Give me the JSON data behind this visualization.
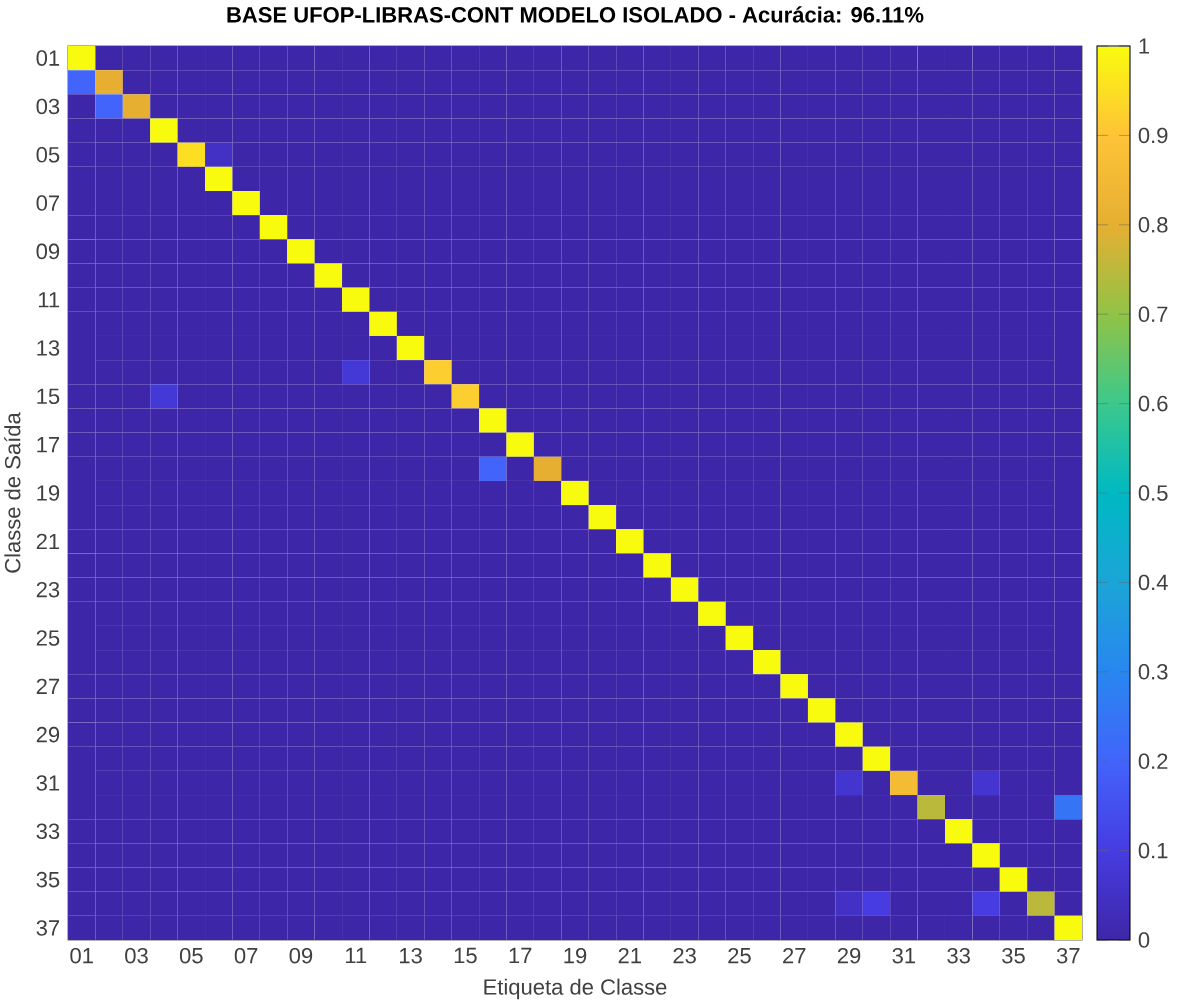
{
  "chart_data": {
    "type": "heatmap",
    "title": "BASE UFOP-LIBRAS-CONT MODELO ISOLADO - Acurácia: 96.11%",
    "xlabel": "Etiqueta de Classe",
    "ylabel": "Classe de Saída",
    "categories": [
      "01",
      null,
      "03",
      null,
      "05",
      null,
      "07",
      null,
      "09",
      null,
      "11",
      null,
      "13",
      null,
      "15",
      null,
      "17",
      null,
      "19",
      null,
      "21",
      null,
      "23",
      null,
      "25",
      null,
      "27",
      null,
      "29",
      null,
      "31",
      null,
      "33",
      null,
      "35",
      null,
      "37"
    ],
    "y_categories": [
      "01",
      null,
      "03",
      null,
      "05",
      null,
      "07",
      null,
      "09",
      null,
      "11",
      null,
      "13",
      null,
      "15",
      null,
      "17",
      null,
      "19",
      null,
      "21",
      null,
      "23",
      null,
      "25",
      null,
      "27",
      null,
      "29",
      null,
      "31",
      null,
      "33",
      null,
      "35",
      null,
      "37"
    ],
    "cells": [
      [
        1,
        0,
        0,
        0,
        0,
        0,
        0,
        0,
        0,
        0,
        0,
        0,
        0,
        0,
        0,
        0,
        0,
        0,
        0,
        0,
        0,
        0,
        0,
        0,
        0,
        0,
        0,
        0,
        0,
        0,
        0,
        0,
        0,
        0,
        0,
        0,
        0
      ],
      [
        0.2,
        0.8,
        0,
        0,
        0,
        0,
        0,
        0,
        0,
        0,
        0,
        0,
        0,
        0,
        0,
        0,
        0,
        0,
        0,
        0,
        0,
        0,
        0,
        0,
        0,
        0,
        0,
        0,
        0,
        0,
        0,
        0,
        0,
        0,
        0,
        0,
        0
      ],
      [
        0,
        0.2,
        0.8,
        0,
        0,
        0,
        0,
        0,
        0,
        0,
        0,
        0,
        0,
        0,
        0,
        0,
        0,
        0,
        0,
        0,
        0,
        0,
        0,
        0,
        0,
        0,
        0,
        0,
        0,
        0,
        0,
        0,
        0,
        0,
        0,
        0,
        0
      ],
      [
        0,
        0,
        0,
        1,
        0,
        0,
        0,
        0,
        0,
        0,
        0,
        0,
        0,
        0,
        0,
        0,
        0,
        0,
        0,
        0,
        0,
        0,
        0,
        0,
        0,
        0,
        0,
        0,
        0,
        0,
        0,
        0,
        0,
        0,
        0,
        0,
        0
      ],
      [
        0,
        0,
        0,
        0,
        0.95,
        0.05,
        0,
        0,
        0,
        0,
        0,
        0,
        0,
        0,
        0,
        0,
        0,
        0,
        0,
        0,
        0,
        0,
        0,
        0,
        0,
        0,
        0,
        0,
        0,
        0,
        0,
        0,
        0,
        0,
        0,
        0,
        0
      ],
      [
        0,
        0,
        0,
        0,
        0,
        1,
        0,
        0,
        0,
        0,
        0,
        0,
        0,
        0,
        0,
        0,
        0,
        0,
        0,
        0,
        0,
        0,
        0,
        0,
        0,
        0,
        0,
        0,
        0,
        0,
        0,
        0,
        0,
        0,
        0,
        0,
        0
      ],
      [
        0,
        0,
        0,
        0,
        0,
        0,
        1,
        0,
        0,
        0,
        0,
        0,
        0,
        0,
        0,
        0,
        0,
        0,
        0,
        0,
        0,
        0,
        0,
        0,
        0,
        0,
        0,
        0,
        0,
        0,
        0,
        0,
        0,
        0,
        0,
        0,
        0
      ],
      [
        0,
        0,
        0,
        0,
        0,
        0,
        0,
        1,
        0,
        0,
        0,
        0,
        0,
        0,
        0,
        0,
        0,
        0,
        0,
        0,
        0,
        0,
        0,
        0,
        0,
        0,
        0,
        0,
        0,
        0,
        0,
        0,
        0,
        0,
        0,
        0,
        0
      ],
      [
        0,
        0,
        0,
        0,
        0,
        0,
        0,
        0,
        1,
        0,
        0,
        0,
        0,
        0,
        0,
        0,
        0,
        0,
        0,
        0,
        0,
        0,
        0,
        0,
        0,
        0,
        0,
        0,
        0,
        0,
        0,
        0,
        0,
        0,
        0,
        0,
        0
      ],
      [
        0,
        0,
        0,
        0,
        0,
        0,
        0,
        0,
        0,
        1,
        0,
        0,
        0,
        0,
        0,
        0,
        0,
        0,
        0,
        0,
        0,
        0,
        0,
        0,
        0,
        0,
        0,
        0,
        0,
        0,
        0,
        0,
        0,
        0,
        0,
        0,
        0
      ],
      [
        0,
        0,
        0,
        0,
        0,
        0,
        0,
        0,
        0,
        0,
        1,
        0,
        0,
        0,
        0,
        0,
        0,
        0,
        0,
        0,
        0,
        0,
        0,
        0,
        0,
        0,
        0,
        0,
        0,
        0,
        0,
        0,
        0,
        0,
        0,
        0,
        0
      ],
      [
        0,
        0,
        0,
        0,
        0,
        0,
        0,
        0,
        0,
        0,
        0,
        1,
        0,
        0,
        0,
        0,
        0,
        0,
        0,
        0,
        0,
        0,
        0,
        0,
        0,
        0,
        0,
        0,
        0,
        0,
        0,
        0,
        0,
        0,
        0,
        0,
        0
      ],
      [
        0,
        0,
        0,
        0,
        0,
        0,
        0,
        0,
        0,
        0,
        0,
        0,
        1,
        0,
        0,
        0,
        0,
        0,
        0,
        0,
        0,
        0,
        0,
        0,
        0,
        0,
        0,
        0,
        0,
        0,
        0,
        0,
        0,
        0,
        0,
        0,
        0
      ],
      [
        0,
        0,
        0,
        0,
        0,
        0,
        0,
        0,
        0,
        0,
        0.08,
        0,
        0,
        0.92,
        0,
        0,
        0,
        0,
        0,
        0,
        0,
        0,
        0,
        0,
        0,
        0,
        0,
        0,
        0,
        0,
        0,
        0,
        0,
        0,
        0,
        0,
        0
      ],
      [
        0,
        0,
        0,
        0.08,
        0,
        0,
        0,
        0,
        0,
        0,
        0,
        0,
        0,
        0,
        0.92,
        0,
        0,
        0,
        0,
        0,
        0,
        0,
        0,
        0,
        0,
        0,
        0,
        0,
        0,
        0,
        0,
        0,
        0,
        0,
        0,
        0,
        0
      ],
      [
        0,
        0,
        0,
        0,
        0,
        0,
        0,
        0,
        0,
        0,
        0,
        0,
        0,
        0,
        0,
        1,
        0,
        0,
        0,
        0,
        0,
        0,
        0,
        0,
        0,
        0,
        0,
        0,
        0,
        0,
        0,
        0,
        0,
        0,
        0,
        0,
        0
      ],
      [
        0,
        0,
        0,
        0,
        0,
        0,
        0,
        0,
        0,
        0,
        0,
        0,
        0,
        0,
        0,
        0,
        1,
        0,
        0,
        0,
        0,
        0,
        0,
        0,
        0,
        0,
        0,
        0,
        0,
        0,
        0,
        0,
        0,
        0,
        0,
        0,
        0
      ],
      [
        0,
        0,
        0,
        0,
        0,
        0,
        0,
        0,
        0,
        0,
        0,
        0,
        0,
        0,
        0,
        0.2,
        0,
        0.8,
        0,
        0,
        0,
        0,
        0,
        0,
        0,
        0,
        0,
        0,
        0,
        0,
        0,
        0,
        0,
        0,
        0,
        0,
        0
      ],
      [
        0,
        0,
        0,
        0,
        0,
        0,
        0,
        0,
        0,
        0,
        0,
        0,
        0,
        0,
        0,
        0,
        0,
        0,
        1,
        0,
        0,
        0,
        0,
        0,
        0,
        0,
        0,
        0,
        0,
        0,
        0,
        0,
        0,
        0,
        0,
        0,
        0
      ],
      [
        0,
        0,
        0,
        0,
        0,
        0,
        0,
        0,
        0,
        0,
        0,
        0,
        0,
        0,
        0,
        0,
        0,
        0,
        0,
        1,
        0,
        0,
        0,
        0,
        0,
        0,
        0,
        0,
        0,
        0,
        0,
        0,
        0,
        0,
        0,
        0,
        0
      ],
      [
        0,
        0,
        0,
        0,
        0,
        0,
        0,
        0,
        0,
        0,
        0,
        0,
        0,
        0,
        0,
        0,
        0,
        0,
        0,
        0,
        1,
        0,
        0,
        0,
        0,
        0,
        0,
        0,
        0,
        0,
        0,
        0,
        0,
        0,
        0,
        0,
        0
      ],
      [
        0,
        0,
        0,
        0,
        0,
        0,
        0,
        0,
        0,
        0,
        0,
        0,
        0,
        0,
        0,
        0,
        0,
        0,
        0,
        0,
        0,
        1,
        0,
        0,
        0,
        0,
        0,
        0,
        0,
        0,
        0,
        0,
        0,
        0,
        0,
        0,
        0
      ],
      [
        0,
        0,
        0,
        0,
        0,
        0,
        0,
        0,
        0,
        0,
        0,
        0,
        0,
        0,
        0,
        0,
        0,
        0,
        0,
        0,
        0,
        0,
        1,
        0,
        0,
        0,
        0,
        0,
        0,
        0,
        0,
        0,
        0,
        0,
        0,
        0,
        0
      ],
      [
        0,
        0,
        0,
        0,
        0,
        0,
        0,
        0,
        0,
        0,
        0,
        0,
        0,
        0,
        0,
        0,
        0,
        0,
        0,
        0,
        0,
        0,
        0,
        1,
        0,
        0,
        0,
        0,
        0,
        0,
        0,
        0,
        0,
        0,
        0,
        0,
        0
      ],
      [
        0,
        0,
        0,
        0,
        0,
        0,
        0,
        0,
        0,
        0,
        0,
        0,
        0,
        0,
        0,
        0,
        0,
        0,
        0,
        0,
        0,
        0,
        0,
        0,
        1,
        0,
        0,
        0,
        0,
        0,
        0,
        0,
        0,
        0,
        0,
        0,
        0
      ],
      [
        0,
        0,
        0,
        0,
        0,
        0,
        0,
        0,
        0,
        0,
        0,
        0,
        0,
        0,
        0,
        0,
        0,
        0,
        0,
        0,
        0,
        0,
        0,
        0,
        0,
        1,
        0,
        0,
        0,
        0,
        0,
        0,
        0,
        0,
        0,
        0,
        0
      ],
      [
        0,
        0,
        0,
        0,
        0,
        0,
        0,
        0,
        0,
        0,
        0,
        0,
        0,
        0,
        0,
        0,
        0,
        0,
        0,
        0,
        0,
        0,
        0,
        0,
        0,
        0,
        1,
        0,
        0,
        0,
        0,
        0,
        0,
        0,
        0,
        0,
        0
      ],
      [
        0,
        0,
        0,
        0,
        0,
        0,
        0,
        0,
        0,
        0,
        0,
        0,
        0,
        0,
        0,
        0,
        0,
        0,
        0,
        0,
        0,
        0,
        0,
        0,
        0,
        0,
        0,
        1,
        0,
        0,
        0,
        0,
        0,
        0,
        0,
        0,
        0
      ],
      [
        0,
        0,
        0,
        0,
        0,
        0,
        0,
        0,
        0,
        0,
        0,
        0,
        0,
        0,
        0,
        0,
        0,
        0,
        0,
        0,
        0,
        0,
        0,
        0,
        0,
        0,
        0,
        0,
        1,
        0,
        0,
        0,
        0,
        0,
        0,
        0,
        0
      ],
      [
        0,
        0,
        0,
        0,
        0,
        0,
        0,
        0,
        0,
        0,
        0,
        0,
        0,
        0,
        0,
        0,
        0,
        0,
        0,
        0,
        0,
        0,
        0,
        0,
        0,
        0,
        0,
        0,
        0,
        1,
        0,
        0,
        0,
        0,
        0,
        0,
        0
      ],
      [
        0,
        0,
        0,
        0,
        0,
        0,
        0,
        0,
        0,
        0,
        0,
        0,
        0,
        0,
        0,
        0,
        0,
        0,
        0,
        0,
        0,
        0,
        0,
        0,
        0,
        0,
        0,
        0,
        0.07,
        0,
        0.86,
        0,
        0,
        0.07,
        0,
        0,
        0
      ],
      [
        0,
        0,
        0,
        0,
        0,
        0,
        0,
        0,
        0,
        0,
        0,
        0,
        0,
        0,
        0,
        0,
        0,
        0,
        0,
        0,
        0,
        0,
        0,
        0,
        0,
        0,
        0,
        0,
        0,
        0,
        0,
        0.75,
        0,
        0,
        0,
        0,
        0.25
      ],
      [
        0,
        0,
        0,
        0,
        0,
        0,
        0,
        0,
        0,
        0,
        0,
        0,
        0,
        0,
        0,
        0,
        0,
        0,
        0,
        0,
        0,
        0,
        0,
        0,
        0,
        0,
        0,
        0,
        0,
        0,
        0,
        0,
        1,
        0,
        0,
        0,
        0
      ],
      [
        0,
        0,
        0,
        0,
        0,
        0,
        0,
        0,
        0,
        0,
        0,
        0,
        0,
        0,
        0,
        0,
        0,
        0,
        0,
        0,
        0,
        0,
        0,
        0,
        0,
        0,
        0,
        0,
        0,
        0,
        0,
        0,
        0,
        1,
        0,
        0,
        0
      ],
      [
        0,
        0,
        0,
        0,
        0,
        0,
        0,
        0,
        0,
        0,
        0,
        0,
        0,
        0,
        0,
        0,
        0,
        0,
        0,
        0,
        0,
        0,
        0,
        0,
        0,
        0,
        0,
        0,
        0,
        0,
        0,
        0,
        0,
        0,
        1,
        0,
        0
      ],
      [
        0,
        0,
        0,
        0,
        0,
        0,
        0,
        0,
        0,
        0,
        0,
        0,
        0,
        0,
        0,
        0,
        0,
        0,
        0,
        0,
        0,
        0,
        0,
        0,
        0,
        0,
        0,
        0,
        0.05,
        0.1,
        0,
        0,
        0,
        0.1,
        0,
        0.75,
        0
      ],
      [
        0,
        0,
        0,
        0,
        0,
        0,
        0,
        0,
        0,
        0,
        0,
        0,
        0,
        0,
        0,
        0,
        0,
        0,
        0,
        0,
        0,
        0,
        0,
        0,
        0,
        0,
        0,
        0,
        0,
        0,
        0,
        0,
        0,
        0,
        0,
        0,
        1
      ]
    ],
    "clim": [
      0,
      1
    ],
    "cticks": [
      0,
      0.1,
      0.2,
      0.3,
      0.4,
      0.5,
      0.6,
      0.7,
      0.8,
      0.9,
      1
    ]
  }
}
